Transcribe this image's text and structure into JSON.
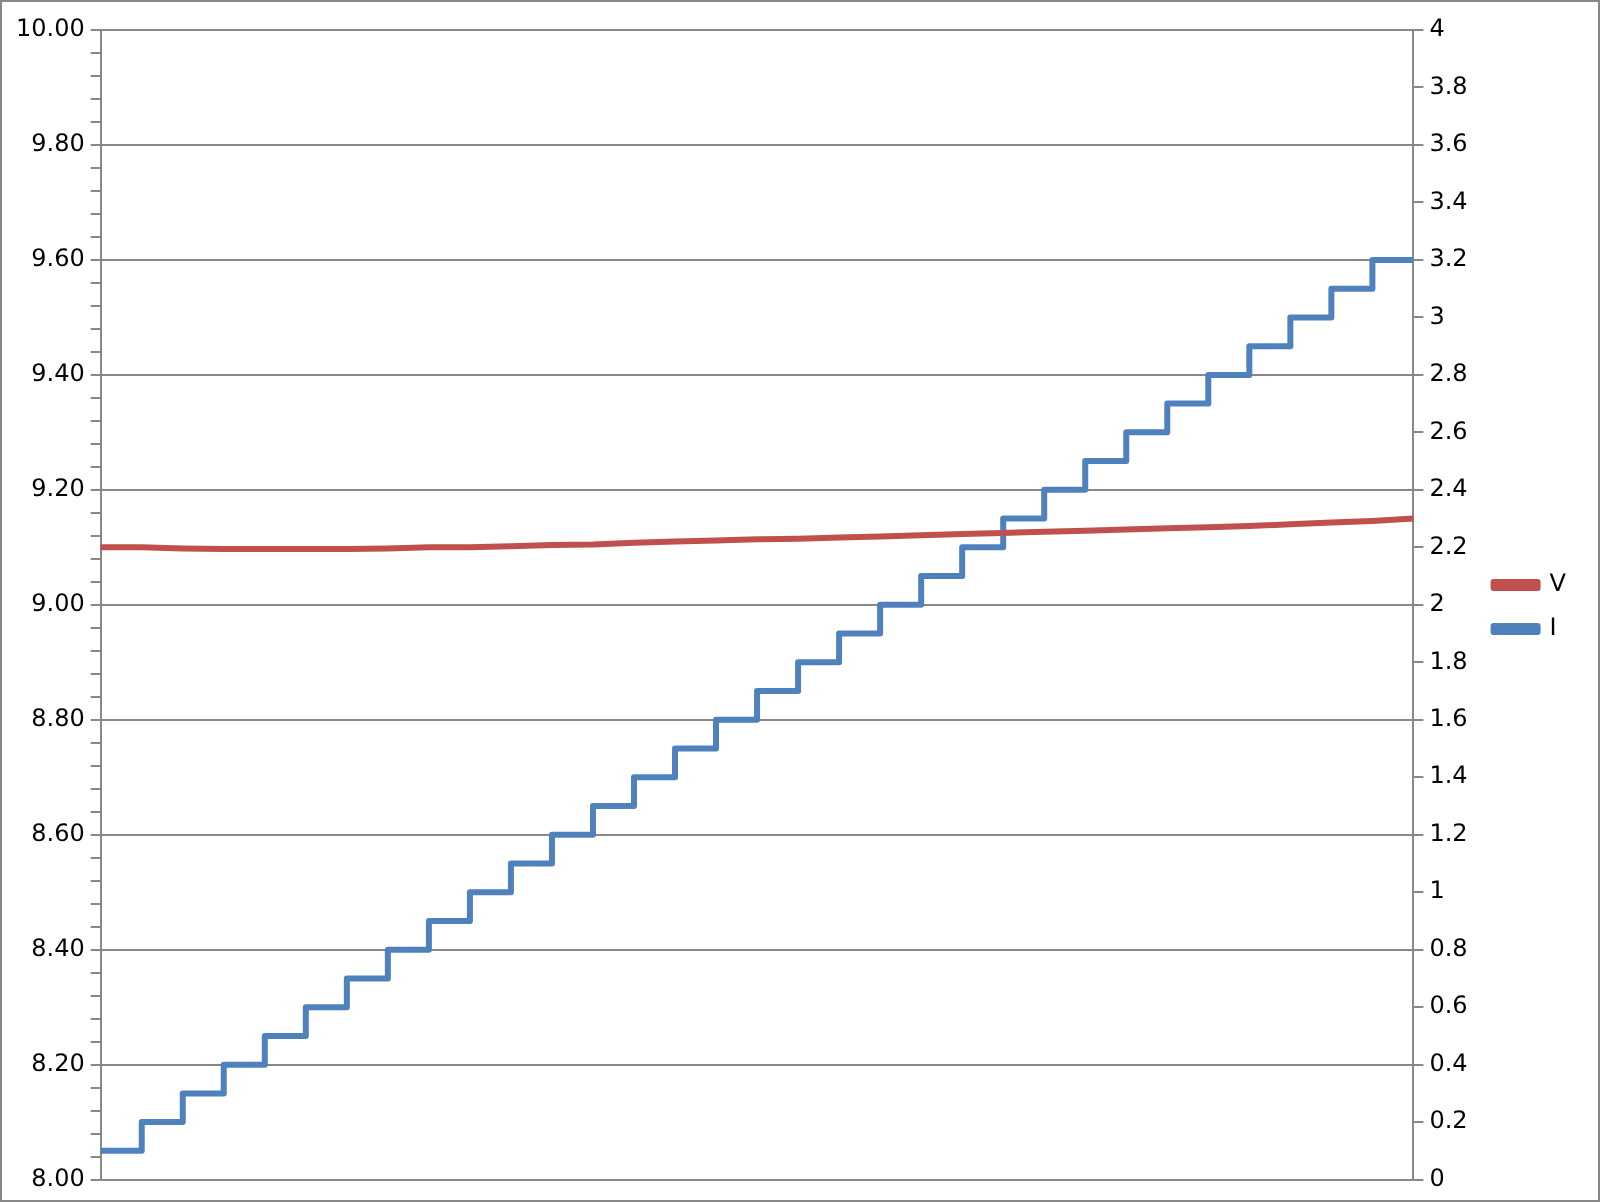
{
  "chart_data": {
    "type": "line",
    "categories": [
      null,
      null,
      null,
      null,
      null,
      null,
      null,
      null,
      null,
      null,
      null,
      null,
      null,
      null,
      null,
      null,
      null,
      null,
      null,
      null,
      null,
      null,
      null,
      null,
      null,
      null,
      null,
      null,
      null,
      null,
      null,
      null,
      null
    ],
    "series": [
      {
        "name": "V",
        "type": "line",
        "color": "#c0504d",
        "values": [
          9.1,
          9.1,
          9.098,
          9.097,
          9.097,
          9.097,
          9.097,
          9.098,
          9.1,
          9.1,
          9.102,
          9.104,
          9.105,
          9.108,
          9.11,
          9.112,
          9.114,
          9.115,
          9.117,
          9.119,
          9.121,
          9.123,
          9.125,
          9.127,
          9.129,
          9.131,
          9.133,
          9.135,
          9.137,
          9.14,
          9.143,
          9.146,
          9.15
        ]
      },
      {
        "name": "I",
        "type": "step",
        "axis": "y2",
        "color": "#4f81bd",
        "values": [
          0.1,
          0.2,
          0.3,
          0.4,
          0.5,
          0.6,
          0.7,
          0.8,
          0.9,
          1.0,
          1.1,
          1.2,
          1.3,
          1.4,
          1.5,
          1.6,
          1.7,
          1.8,
          1.9,
          2.0,
          2.1,
          2.2,
          2.3,
          2.4,
          2.5,
          2.6,
          2.7,
          2.8,
          2.9,
          3.0,
          3.1,
          3.2,
          3.2
        ]
      }
    ],
    "ylim": [
      8,
      10
    ],
    "yticks": [
      {
        "value": 8,
        "label": "8.00"
      },
      {
        "value": 8.04,
        "label": null
      },
      {
        "value": 8.08,
        "label": null
      },
      {
        "value": 8.12,
        "label": null
      },
      {
        "value": 8.16,
        "label": null
      },
      {
        "value": 8.2,
        "label": "8.20"
      },
      {
        "value": 8.24,
        "label": null
      },
      {
        "value": 8.28,
        "label": null
      },
      {
        "value": 8.32,
        "label": null
      },
      {
        "value": 8.36,
        "label": null
      },
      {
        "value": 8.4,
        "label": "8.40"
      },
      {
        "value": 8.44,
        "label": null
      },
      {
        "value": 8.48,
        "label": null
      },
      {
        "value": 8.52,
        "label": null
      },
      {
        "value": 8.56,
        "label": null
      },
      {
        "value": 8.6,
        "label": "8.60"
      },
      {
        "value": 8.64,
        "label": null
      },
      {
        "value": 8.68,
        "label": null
      },
      {
        "value": 8.72,
        "label": null
      },
      {
        "value": 8.76,
        "label": null
      },
      {
        "value": 8.8,
        "label": "8.80"
      },
      {
        "value": 8.84,
        "label": null
      },
      {
        "value": 8.88,
        "label": null
      },
      {
        "value": 8.92,
        "label": null
      },
      {
        "value": 8.96,
        "label": null
      },
      {
        "value": 9,
        "label": "9.00"
      },
      {
        "value": 9.04,
        "label": null
      },
      {
        "value": 9.08,
        "label": null
      },
      {
        "value": 9.12,
        "label": null
      },
      {
        "value": 9.16,
        "label": null
      },
      {
        "value": 9.2,
        "label": "9.20"
      },
      {
        "value": 9.24,
        "label": null
      },
      {
        "value": 9.28,
        "label": null
      },
      {
        "value": 9.32,
        "label": null
      },
      {
        "value": 9.36,
        "label": null
      },
      {
        "value": 9.4,
        "label": "9.40"
      },
      {
        "value": 9.44,
        "label": null
      },
      {
        "value": 9.48,
        "label": null
      },
      {
        "value": 9.52,
        "label": null
      },
      {
        "value": 9.56,
        "label": null
      },
      {
        "value": 9.6,
        "label": "9.60"
      },
      {
        "value": 9.64,
        "label": null
      },
      {
        "value": 9.68,
        "label": null
      },
      {
        "value": 9.72,
        "label": null
      },
      {
        "value": 9.76,
        "label": null
      },
      {
        "value": 9.8,
        "label": "9.80"
      },
      {
        "value": 9.84,
        "label": null
      },
      {
        "value": 9.88,
        "label": null
      },
      {
        "value": 9.92,
        "label": null
      },
      {
        "value": 9.96,
        "label": null
      },
      {
        "value": 10,
        "label": "10.00"
      }
    ],
    "y2lim": [
      0,
      4
    ],
    "y2ticks": [
      0,
      0.2,
      0.4,
      0.6,
      0.8,
      1,
      1.2,
      1.4,
      1.6,
      1.8,
      2,
      2.2,
      2.4,
      2.6,
      2.8,
      3,
      3.2,
      3.4,
      3.6,
      3.8,
      4
    ],
    "grid": "y",
    "legend": "right",
    "marker": "none",
    "line_style": "solid"
  }
}
